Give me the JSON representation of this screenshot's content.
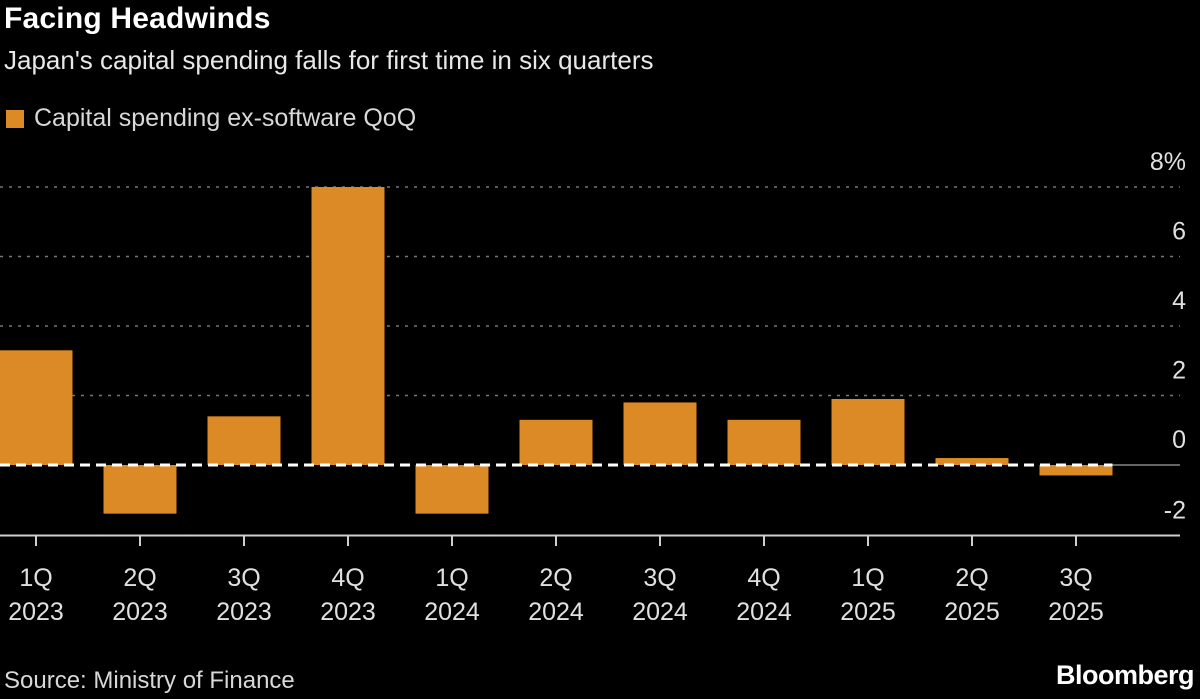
{
  "title": "Facing Headwinds",
  "subtitle": "Japan's capital spending falls for first time in six quarters",
  "source": "Source: Ministry of Finance",
  "logo": "Bloomberg",
  "chart_data": {
    "type": "bar",
    "title": "Facing Headwinds",
    "subtitle": "Japan's capital spending falls for first time in six quarters",
    "categories": [
      [
        "1Q",
        "2023"
      ],
      [
        "2Q",
        "2023"
      ],
      [
        "3Q",
        "2023"
      ],
      [
        "4Q",
        "2023"
      ],
      [
        "1Q",
        "2024"
      ],
      [
        "2Q",
        "2024"
      ],
      [
        "3Q",
        "2024"
      ],
      [
        "4Q",
        "2024"
      ],
      [
        "1Q",
        "2025"
      ],
      [
        "2Q",
        "2025"
      ],
      [
        "3Q",
        "2025"
      ]
    ],
    "series": [
      {
        "name": "Capital spending ex-software QoQ",
        "values": [
          3.3,
          -1.4,
          1.4,
          8.0,
          -1.4,
          1.3,
          1.8,
          1.3,
          1.9,
          0.2,
          -0.3
        ],
        "color": "#dc8a26"
      }
    ],
    "ylim": [
      -2,
      8
    ],
    "yticks": [
      "8%",
      "6",
      "4",
      "2",
      "0",
      "-2"
    ],
    "ytick_values": [
      8,
      6,
      4,
      2,
      0,
      -2
    ],
    "grid": true,
    "legend": "top-left",
    "xlabel": "",
    "ylabel": ""
  }
}
